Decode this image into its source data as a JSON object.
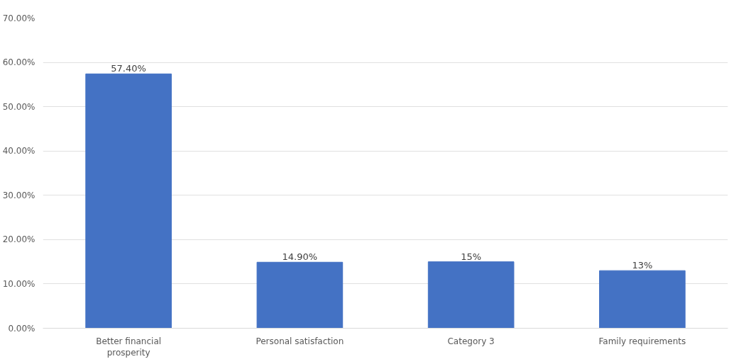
{
  "chart_data": {
    "type": "bar",
    "categories": [
      "Better financial prosperity",
      "Personal satisfaction",
      "Category 3",
      "Family requirements"
    ],
    "values": [
      57.4,
      14.9,
      15,
      13
    ],
    "color": "#4472c4",
    "value_labels": [
      "57.40%",
      "14.90%",
      "15%",
      "13%"
    ],
    "ylim": [
      0,
      70
    ],
    "yticks": [
      {
        "value": 0,
        "label": "0.00%"
      },
      {
        "value": 10,
        "label": "10.00%"
      },
      {
        "value": 20,
        "label": "20.00%"
      },
      {
        "value": 30,
        "label": "30.00%"
      },
      {
        "value": 40,
        "label": "40.00%"
      },
      {
        "value": 50,
        "label": "50.00%"
      },
      {
        "value": 60,
        "label": "60.00%"
      },
      {
        "value": 70,
        "label": "70.00%"
      }
    ],
    "grid": "y"
  }
}
